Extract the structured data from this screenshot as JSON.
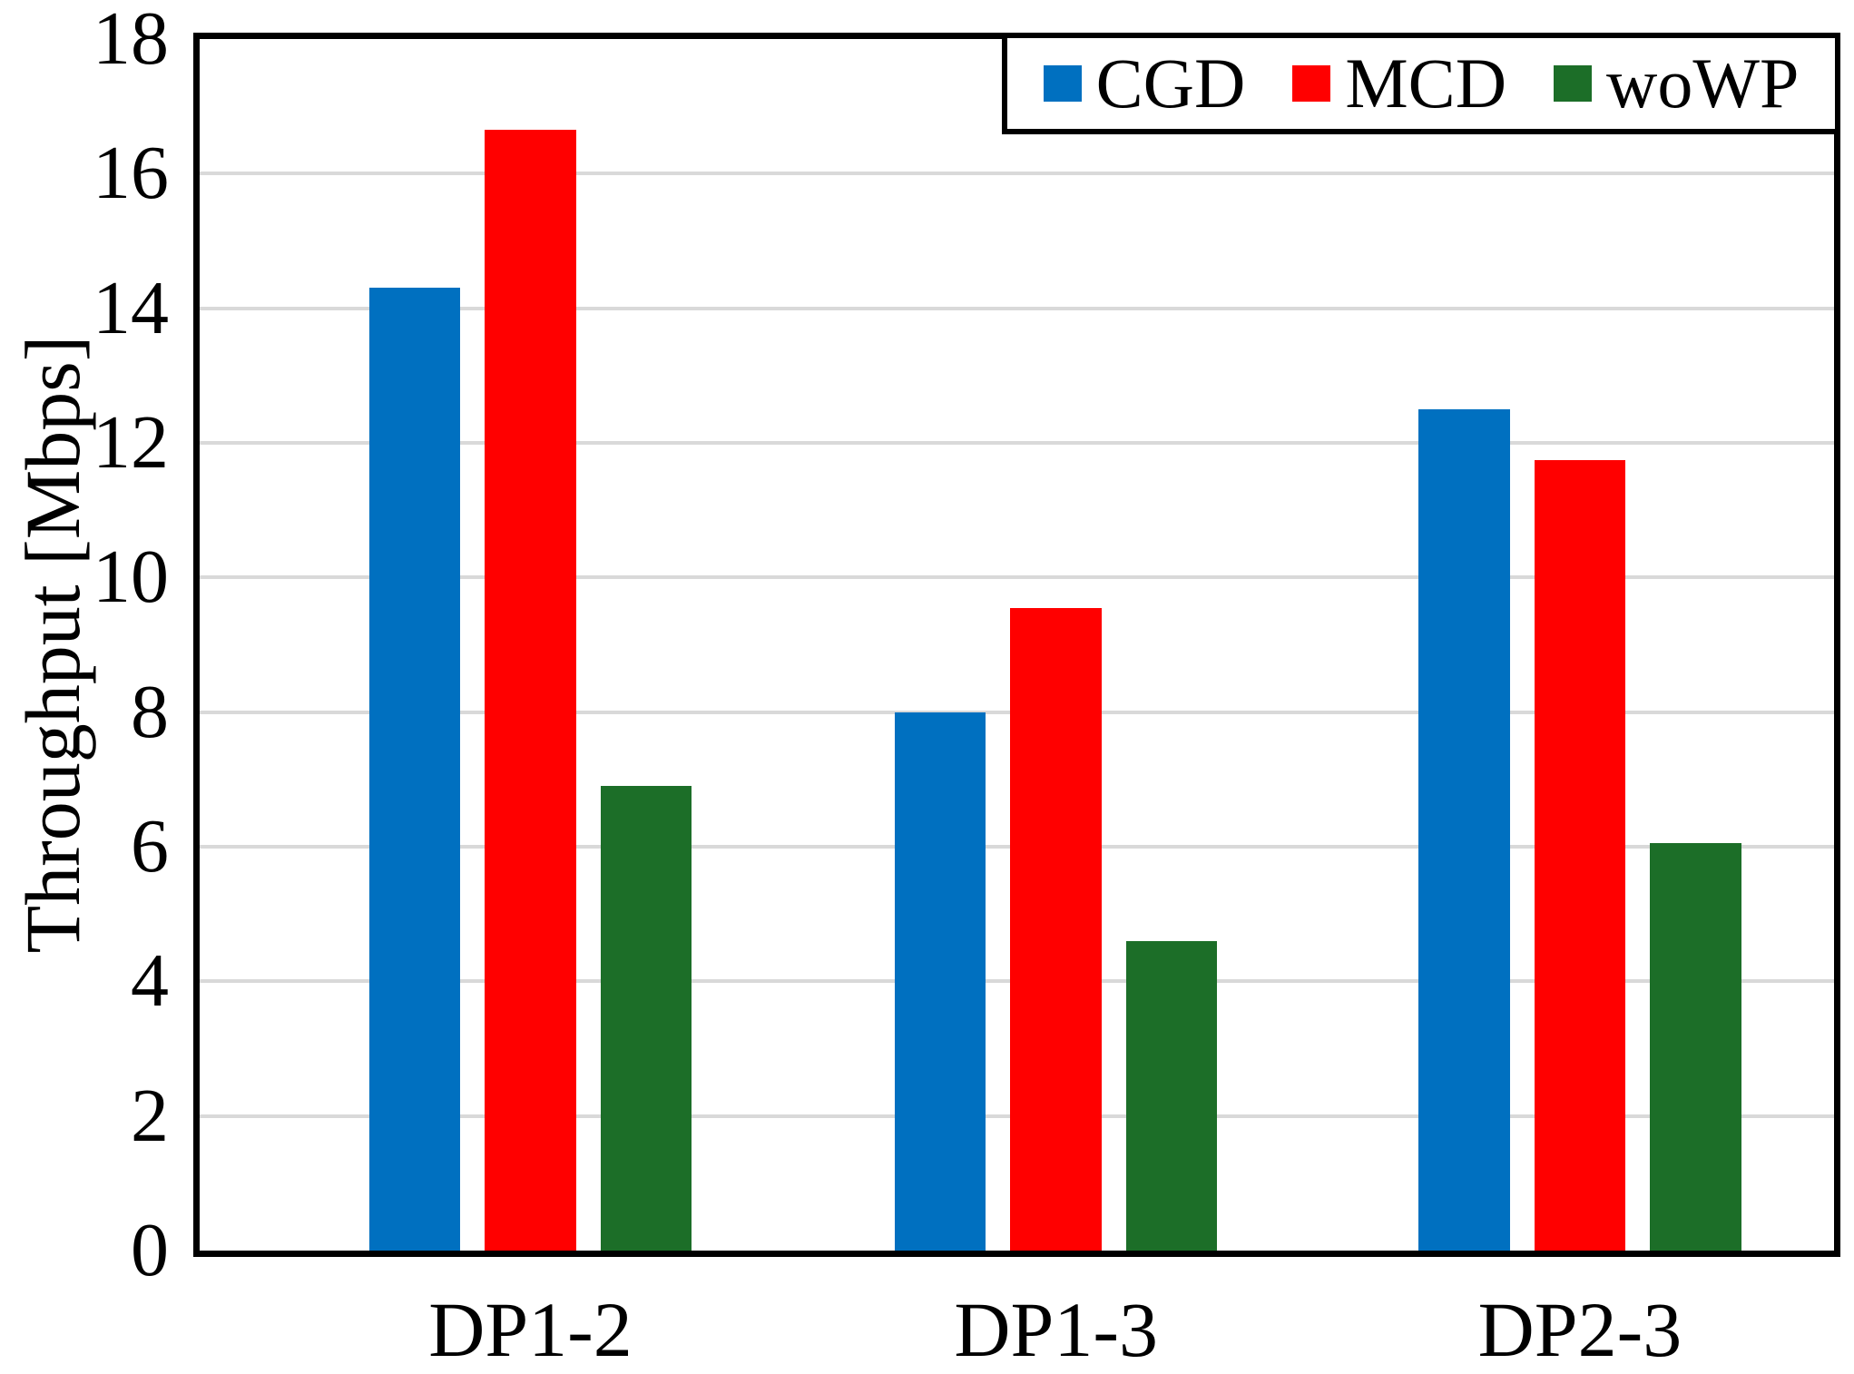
{
  "chart_data": {
    "type": "bar",
    "title": "",
    "xlabel": "",
    "ylabel": "Throughput [Mbps]",
    "categories": [
      "DP1-2",
      "DP1-3",
      "DP2-3"
    ],
    "series": [
      {
        "name": "CGD",
        "color": "#0070C0",
        "values": [
          14.3,
          8.0,
          12.5
        ]
      },
      {
        "name": "MCD",
        "color": "#FF0000",
        "values": [
          16.65,
          9.55,
          11.75
        ]
      },
      {
        "name": "woWP",
        "color": "#1C6E28",
        "values": [
          6.9,
          4.6,
          6.05
        ]
      }
    ],
    "ylim": [
      0,
      18
    ],
    "ytick_step": 2,
    "yticks": [
      0,
      2,
      4,
      6,
      8,
      10,
      12,
      14,
      16,
      18
    ],
    "grid": true,
    "gridline_color": "#D9D9D9",
    "axis_color": "#000000",
    "background_color": "#FFFFFF",
    "legend_position": "top-right"
  }
}
